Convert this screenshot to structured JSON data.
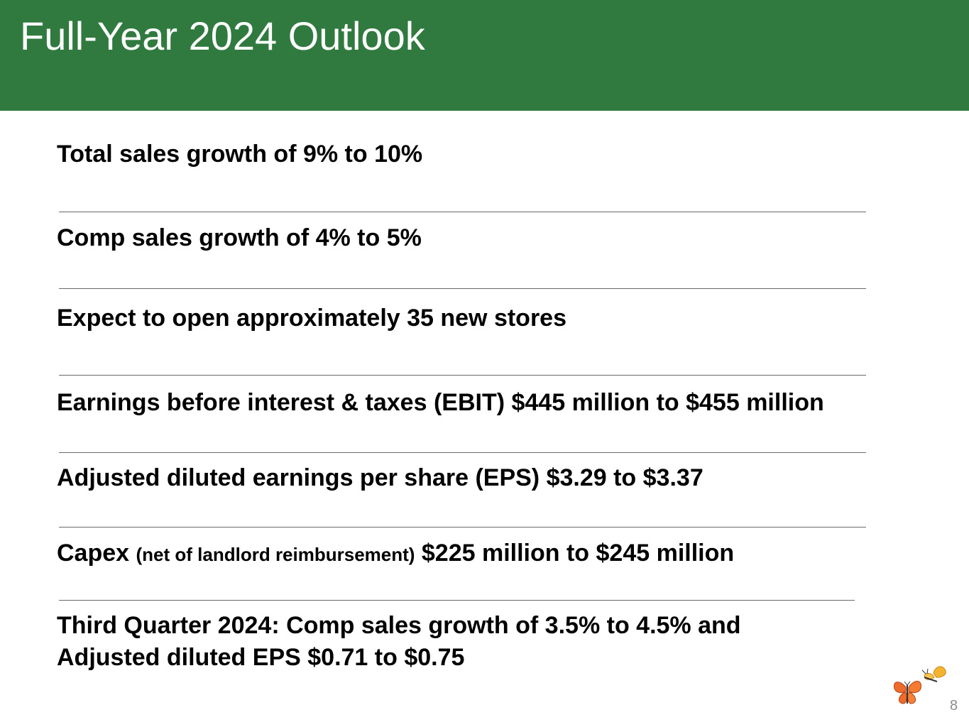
{
  "slide": {
    "title": "Full-Year 2024 Outlook",
    "page_number": "8",
    "accent_color": "#317a3f"
  },
  "outlook": {
    "total_sales": "Total sales growth of 9% to 10%",
    "comp_sales": "Comp sales growth of 4% to 5%",
    "new_stores": "Expect to open approximately 35 new stores",
    "ebit": "Earnings before interest & taxes (EBIT) $445 million to $455 million",
    "eps": "Adjusted diluted earnings per share (EPS) $3.29 to $3.37",
    "capex_label": "Capex",
    "capex_note": "(net of landlord reimbursement)",
    "capex_value": "$225 million to $245 million",
    "third_quarter_line1": "Third Quarter 2024: Comp sales growth of 3.5% to 4.5% and",
    "third_quarter_line2": "Adjusted diluted EPS $0.71 to $0.75"
  },
  "decor": {
    "logo_icon": "butterflies-icon"
  }
}
